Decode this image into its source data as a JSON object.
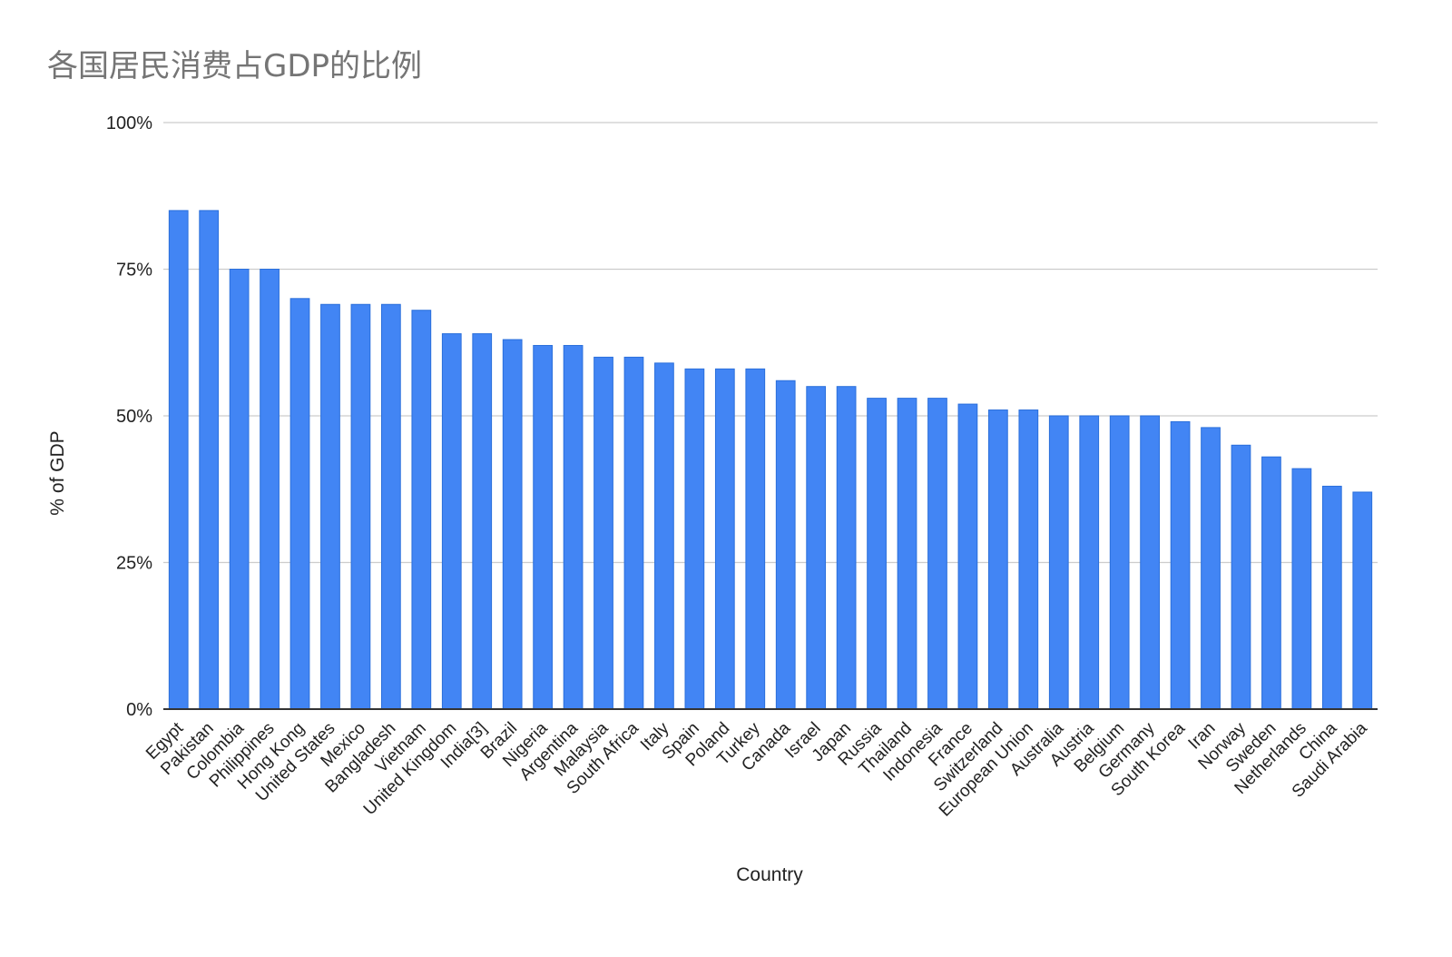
{
  "chart_data": {
    "type": "bar",
    "title": "各国居民消费占GDP的比例",
    "xlabel": "Country",
    "ylabel": "% of GDP",
    "ylim": [
      0,
      100
    ],
    "yticks": [
      0,
      25,
      50,
      75,
      100
    ],
    "ytick_labels": [
      "0%",
      "25%",
      "50%",
      "75%",
      "100%"
    ],
    "grid": true,
    "legend": "none",
    "categories": [
      "Egypt",
      "Pakistan",
      "Colombia",
      "Philippines",
      "Hong Kong",
      "United States",
      "Mexico",
      "Bangladesh",
      "Vietnam",
      "United Kingdom",
      "India[3]",
      "Brazil",
      "Nigeria",
      "Argentina",
      "Malaysia",
      "South Africa",
      "Italy",
      "Spain",
      "Poland",
      "Turkey",
      "Canada",
      "Israel",
      "Japan",
      "Russia",
      "Thailand",
      "Indonesia",
      "France",
      "Switzerland",
      "European Union",
      "Australia",
      "Austria",
      "Belgium",
      "Germany",
      "South Korea",
      "Iran",
      "Norway",
      "Sweden",
      "Netherlands",
      "China",
      "Saudi Arabia"
    ],
    "series": [
      {
        "values": [
          85,
          85,
          75,
          75,
          70,
          69,
          69,
          69,
          68,
          64,
          64,
          63,
          62,
          62,
          60,
          60,
          59,
          58,
          58,
          58,
          56,
          55,
          55,
          53,
          53,
          53,
          52,
          51,
          51,
          50,
          50,
          50,
          50,
          49,
          48,
          45,
          43,
          41,
          38,
          37
        ],
        "color": "#4285f4"
      }
    ],
    "colors": {
      "bar_fill": "#4285f4",
      "bar_stroke": "#2a6fdb",
      "gridline": "#cccccc",
      "baseline": "#333333",
      "title": "#757575",
      "text": "#222222"
    }
  }
}
